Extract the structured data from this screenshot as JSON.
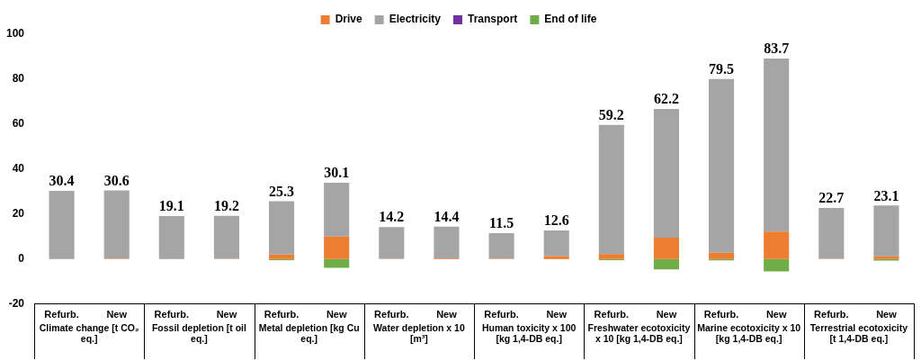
{
  "chart_data": {
    "type": "bar",
    "stacked": true,
    "grid": false,
    "legend": "top",
    "categories": [
      "Refurb.",
      "New",
      "Refurb.",
      "New",
      "Refurb.",
      "New",
      "Refurb.",
      "New",
      "Refurb.",
      "New",
      "Refurb.",
      "New",
      "Refurb.",
      "New",
      "Refurb.",
      "New"
    ],
    "groups": [
      "Climate change [t CO₂ eq.]",
      "Fossil depletion [t oil eq.]",
      "Metal depletion [kg Cu eq.]",
      "Water depletion x 10 [m³]",
      "Human toxicity x 100 [kg 1,4-DB eq.]",
      "Freshwater ecotoxicity x 10 [kg 1,4-DB eq.]",
      "Marine ecotoxicity x 10 [kg 1,4-DB eq.]",
      "Terrestrial ecotoxicity [t 1,4-DB eq.]"
    ],
    "series": [
      {
        "name": "Drive",
        "color": "#ed7d31",
        "values": [
          0,
          0.2,
          0,
          0.1,
          2,
          10,
          0.1,
          0.3,
          0.2,
          1.3,
          2.2,
          9.5,
          2.8,
          12.2,
          0.1,
          1.2
        ]
      },
      {
        "name": "Electricity",
        "color": "#a5a5a5",
        "values": [
          30.4,
          30.4,
          19.1,
          19.1,
          23.8,
          24,
          14.1,
          14.1,
          11.3,
          11.4,
          57.5,
          57.3,
          77.3,
          77,
          22.6,
          22.6
        ]
      },
      {
        "name": "Transport",
        "color": "#7030a0",
        "values": [
          0,
          0,
          0,
          0,
          0,
          0,
          0,
          0,
          0,
          0,
          0,
          0,
          0,
          0,
          0,
          0
        ]
      },
      {
        "name": "End of life",
        "color": "#70ad47",
        "values": [
          0,
          0,
          0,
          0,
          -0.5,
          -3.9,
          0,
          0,
          0,
          -0.1,
          -0.5,
          -4.6,
          -0.6,
          -5.5,
          0,
          -0.7
        ]
      }
    ],
    "totals": [
      30.4,
      30.6,
      19.1,
      19.2,
      25.3,
      30.1,
      14.2,
      14.4,
      11.5,
      12.6,
      59.2,
      62.2,
      79.5,
      83.7,
      22.7,
      23.1
    ],
    "ylim": [
      -20,
      100
    ],
    "yticks": [
      -20,
      0,
      20,
      40,
      60,
      80,
      100
    ]
  }
}
